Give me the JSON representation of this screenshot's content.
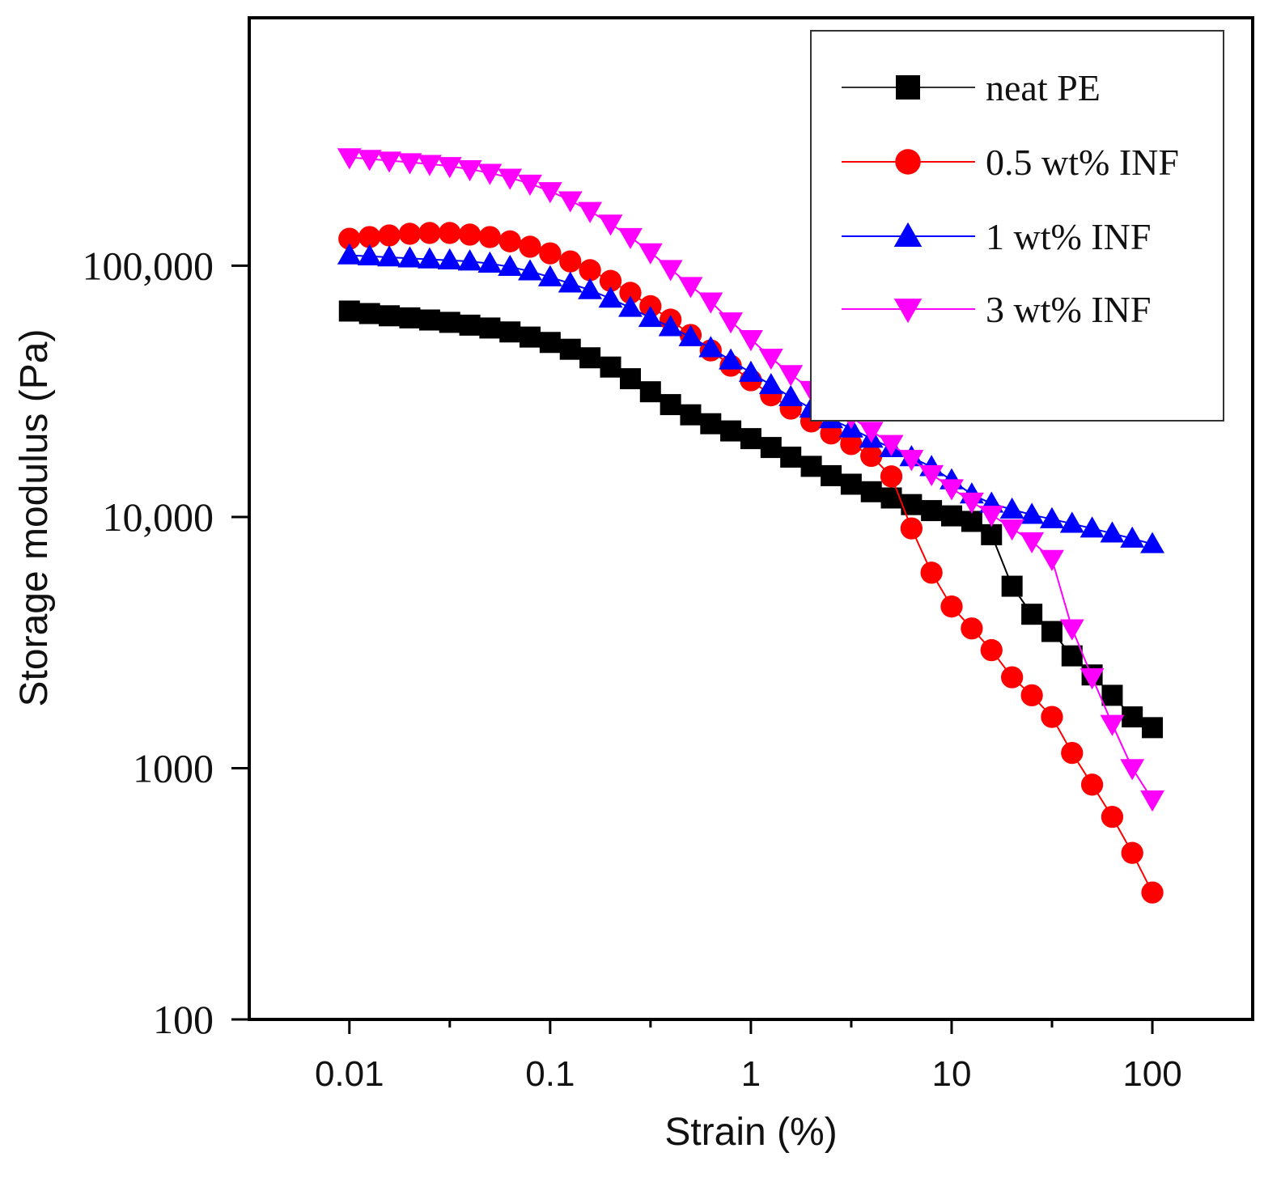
{
  "chart_data": {
    "type": "line",
    "xlabel": "Strain (%)",
    "ylabel": "Storage modulus (Pa)",
    "x_scale": "log",
    "y_scale": "log",
    "xlim": [
      0.00317,
      316
    ],
    "ylim": [
      100,
      970000
    ],
    "x_ticks": [
      {
        "value": 0.01,
        "label": "0.01"
      },
      {
        "value": 0.1,
        "label": "0.1"
      },
      {
        "value": 1,
        "label": "1"
      },
      {
        "value": 10,
        "label": "10"
      },
      {
        "value": 100,
        "label": "100"
      }
    ],
    "y_ticks": [
      {
        "value": 100,
        "label": "100"
      },
      {
        "value": 1000,
        "label": "1000"
      },
      {
        "value": 10000,
        "label": "10,000"
      },
      {
        "value": 100000,
        "label": "100,000"
      }
    ],
    "grid": false,
    "legend_position": "top-right",
    "series": [
      {
        "name": "neat PE",
        "color": "#000000",
        "marker": "square",
        "points": [
          [
            0.01,
            66000
          ],
          [
            0.0126,
            64500
          ],
          [
            0.0158,
            63200
          ],
          [
            0.02,
            62000
          ],
          [
            0.0251,
            60800
          ],
          [
            0.0316,
            59500
          ],
          [
            0.0398,
            58000
          ],
          [
            0.0501,
            56500
          ],
          [
            0.0631,
            54500
          ],
          [
            0.0794,
            52000
          ],
          [
            0.1,
            49500
          ],
          [
            0.126,
            46500
          ],
          [
            0.158,
            43000
          ],
          [
            0.2,
            39500
          ],
          [
            0.251,
            35500
          ],
          [
            0.316,
            31500
          ],
          [
            0.398,
            28000
          ],
          [
            0.501,
            25500
          ],
          [
            0.631,
            23500
          ],
          [
            0.794,
            22000
          ],
          [
            1,
            20500
          ],
          [
            1.26,
            18900
          ],
          [
            1.58,
            17300
          ],
          [
            2,
            15900
          ],
          [
            2.51,
            14600
          ],
          [
            3.16,
            13500
          ],
          [
            3.98,
            12600
          ],
          [
            5.01,
            11900
          ],
          [
            6.31,
            11200
          ],
          [
            7.94,
            10600
          ],
          [
            10,
            10100
          ],
          [
            12.6,
            9600
          ],
          [
            15.8,
            8500
          ],
          [
            20,
            5300
          ],
          [
            25.1,
            4100
          ],
          [
            31.6,
            3500
          ],
          [
            39.8,
            2800
          ],
          [
            50.1,
            2350
          ],
          [
            63.1,
            1950
          ],
          [
            79.4,
            1600
          ],
          [
            100,
            1450
          ]
        ]
      },
      {
        "name": "0.5 wt% INF",
        "color": "#ff0000",
        "marker": "circle",
        "points": [
          [
            0.01,
            128000
          ],
          [
            0.0126,
            130000
          ],
          [
            0.0158,
            132000
          ],
          [
            0.02,
            134000
          ],
          [
            0.0251,
            135000
          ],
          [
            0.0316,
            135000
          ],
          [
            0.0398,
            133000
          ],
          [
            0.0501,
            130000
          ],
          [
            0.0631,
            125000
          ],
          [
            0.0794,
            119000
          ],
          [
            0.1,
            112000
          ],
          [
            0.126,
            104000
          ],
          [
            0.158,
            96000
          ],
          [
            0.2,
            87000
          ],
          [
            0.251,
            78000
          ],
          [
            0.316,
            69000
          ],
          [
            0.398,
            61000
          ],
          [
            0.501,
            53000
          ],
          [
            0.631,
            46000
          ],
          [
            0.794,
            40000
          ],
          [
            1,
            35000
          ],
          [
            1.26,
            30500
          ],
          [
            1.58,
            27000
          ],
          [
            2,
            24000
          ],
          [
            2.51,
            21500
          ],
          [
            3.16,
            19500
          ],
          [
            3.98,
            17500
          ],
          [
            5.01,
            14500
          ],
          [
            6.31,
            9000
          ],
          [
            7.94,
            6000
          ],
          [
            10,
            4400
          ],
          [
            12.6,
            3600
          ],
          [
            15.8,
            2950
          ],
          [
            20,
            2300
          ],
          [
            25.1,
            1950
          ],
          [
            31.6,
            1600
          ],
          [
            39.8,
            1150
          ],
          [
            50.1,
            860
          ],
          [
            63.1,
            640
          ],
          [
            79.4,
            460
          ],
          [
            100,
            320
          ]
        ]
      },
      {
        "name": "1 wt% INF",
        "color": "#0000ff",
        "marker": "triangle-up",
        "points": [
          [
            0.01,
            110000
          ],
          [
            0.0126,
            109000
          ],
          [
            0.0158,
            108000
          ],
          [
            0.02,
            107000
          ],
          [
            0.0251,
            106000
          ],
          [
            0.0316,
            105000
          ],
          [
            0.0398,
            104000
          ],
          [
            0.0501,
            102000
          ],
          [
            0.0631,
            99000
          ],
          [
            0.0794,
            95000
          ],
          [
            0.1,
            90000
          ],
          [
            0.126,
            85000
          ],
          [
            0.158,
            80000
          ],
          [
            0.2,
            74000
          ],
          [
            0.251,
            68000
          ],
          [
            0.316,
            62000
          ],
          [
            0.398,
            57000
          ],
          [
            0.501,
            52000
          ],
          [
            0.631,
            47000
          ],
          [
            0.794,
            42000
          ],
          [
            1,
            37500
          ],
          [
            1.26,
            33500
          ],
          [
            1.58,
            30000
          ],
          [
            2,
            27000
          ],
          [
            2.51,
            24500
          ],
          [
            3.16,
            22500
          ],
          [
            3.98,
            20500
          ],
          [
            5.01,
            18800
          ],
          [
            6.31,
            17300
          ],
          [
            7.94,
            15800
          ],
          [
            10,
            14000
          ],
          [
            12.6,
            12300
          ],
          [
            15.8,
            11300
          ],
          [
            20,
            10700
          ],
          [
            25.1,
            10200
          ],
          [
            31.6,
            9800
          ],
          [
            39.8,
            9400
          ],
          [
            50.1,
            9000
          ],
          [
            63.1,
            8600
          ],
          [
            79.4,
            8200
          ],
          [
            100,
            7800
          ]
        ]
      },
      {
        "name": "3 wt% INF",
        "color": "#ff00ff",
        "marker": "triangle-down",
        "points": [
          [
            0.01,
            270000
          ],
          [
            0.0126,
            266000
          ],
          [
            0.0158,
            262000
          ],
          [
            0.02,
            258000
          ],
          [
            0.0251,
            254000
          ],
          [
            0.0316,
            249000
          ],
          [
            0.0398,
            242000
          ],
          [
            0.0501,
            234000
          ],
          [
            0.0631,
            224000
          ],
          [
            0.0794,
            212000
          ],
          [
            0.1,
            198000
          ],
          [
            0.126,
            182000
          ],
          [
            0.158,
            165000
          ],
          [
            0.2,
            147000
          ],
          [
            0.251,
            130000
          ],
          [
            0.316,
            113000
          ],
          [
            0.398,
            97000
          ],
          [
            0.501,
            83000
          ],
          [
            0.631,
            72000
          ],
          [
            0.794,
            60000
          ],
          [
            1,
            51000
          ],
          [
            1.26,
            43000
          ],
          [
            1.58,
            37000
          ],
          [
            2,
            32000
          ],
          [
            2.51,
            28500
          ],
          [
            3.16,
            25000
          ],
          [
            3.98,
            22000
          ],
          [
            5.01,
            19500
          ],
          [
            6.31,
            17000
          ],
          [
            7.94,
            14800
          ],
          [
            10,
            13000
          ],
          [
            12.6,
            11500
          ],
          [
            15.8,
            10200
          ],
          [
            20,
            9000
          ],
          [
            25.1,
            8000
          ],
          [
            31.6,
            6800
          ],
          [
            39.8,
            3600
          ],
          [
            50.1,
            2300
          ],
          [
            63.1,
            1500
          ],
          [
            79.4,
            1000
          ],
          [
            100,
            750
          ]
        ]
      }
    ]
  }
}
